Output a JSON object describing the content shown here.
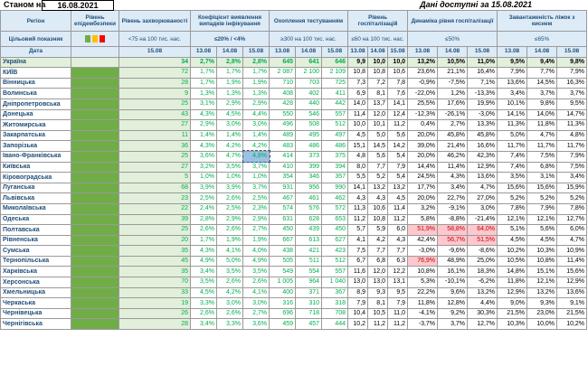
{
  "top": {
    "as_of_label": "Станом на",
    "as_of_date": "16.08.2021",
    "available": "Дані доступні за 15.08.2021"
  },
  "header": {
    "region": "Регіон",
    "epid_level": "Рівень епідембезпеки",
    "incidence": "Рівень захворюваності",
    "detection": "Коефіцієнт виявлення випадків інфікування",
    "testing": "Охоплення тестуванням",
    "hosp": "Рівень госпіталізацій",
    "dynamics": "Динаміка рівня госпіталізації",
    "oxygen": "Завантаженість ліжок з киснем"
  },
  "targets": {
    "label": "Цільовий показник",
    "incidence": "<75 на 100 тис. нас.",
    "detection": "≤20% / <4%",
    "testing": "≥300 на 100 тис. нас.",
    "hosp": "≤60 на 100 тис. нас.",
    "dynamics": "≤50%",
    "oxygen": "≤65%"
  },
  "dates": {
    "label": "Дата",
    "d15": "15.08",
    "d13": "13.08",
    "d14": "14.08"
  },
  "level_colors": [
    "#70ad47",
    "#ffc000",
    "#ff0000"
  ],
  "rows": [
    {
      "name": "Україна",
      "inc": "34",
      "det": [
        "2,7%",
        "2,8%",
        "2,8%"
      ],
      "test": [
        "645",
        "641",
        "646"
      ],
      "hosp": [
        "9,9",
        "10,0",
        "10,0"
      ],
      "dyn": [
        "13,2%",
        "10,5%",
        "11,0%"
      ],
      "oxy": [
        "9,5%",
        "9,4%",
        "9,8%"
      ]
    },
    {
      "name": "КИЇВ",
      "inc": "72",
      "det": [
        "1,7%",
        "1,7%",
        "1,7%"
      ],
      "test": [
        "2 087",
        "2 100",
        "2 109"
      ],
      "hosp": [
        "10,8",
        "10,8",
        "10,6"
      ],
      "dyn": [
        "23,6%",
        "21,1%",
        "16,4%"
      ],
      "oxy": [
        "7,9%",
        "7,7%",
        "7,9%"
      ]
    },
    {
      "name": "Вінницька",
      "inc": "28",
      "det": [
        "1,7%",
        "1,9%",
        "1,9%"
      ],
      "test": [
        "710",
        "703",
        "725"
      ],
      "hosp": [
        "7,3",
        "7,2",
        "7,8"
      ],
      "dyn": [
        "-0,9%",
        "-7,5%",
        "7,1%"
      ],
      "oxy": [
        "13,6%",
        "14,5%",
        "16,3%"
      ]
    },
    {
      "name": "Волинська",
      "inc": "9",
      "det": [
        "1,3%",
        "1,3%",
        "1,3%"
      ],
      "test": [
        "408",
        "402",
        "411"
      ],
      "hosp": [
        "6,9",
        "8,1",
        "7,6"
      ],
      "dyn": [
        "-22,0%",
        "1,2%",
        "-13,3%"
      ],
      "oxy": [
        "3,4%",
        "3,7%",
        "3,7%"
      ]
    },
    {
      "name": "Дніпропетровська",
      "inc": "25",
      "det": [
        "3,1%",
        "2,9%",
        "2,9%"
      ],
      "test": [
        "428",
        "440",
        "442"
      ],
      "hosp": [
        "14,0",
        "13,7",
        "14,1"
      ],
      "dyn": [
        "25,5%",
        "17,6%",
        "19,9%"
      ],
      "oxy": [
        "10,1%",
        "9,8%",
        "9,5%"
      ]
    },
    {
      "name": "Донецька",
      "inc": "43",
      "det": [
        "4,3%",
        "4,5%",
        "4,4%"
      ],
      "test": [
        "550",
        "546",
        "557"
      ],
      "hosp": [
        "11,4",
        "12,0",
        "12,4"
      ],
      "dyn": [
        "-12,3%",
        "-26,1%",
        "-3,0%"
      ],
      "oxy": [
        "14,1%",
        "14,0%",
        "14,7%"
      ]
    },
    {
      "name": "Житомирська",
      "inc": "27",
      "det": [
        "2,9%",
        "3,0%",
        "3,0%"
      ],
      "test": [
        "496",
        "508",
        "512"
      ],
      "hosp": [
        "10,0",
        "10,1",
        "11,2"
      ],
      "dyn": [
        "0,4%",
        "2,7%",
        "13,3%"
      ],
      "oxy": [
        "11,3%",
        "11,8%",
        "11,3%"
      ]
    },
    {
      "name": "Закарпатська",
      "inc": "11",
      "det": [
        "1,4%",
        "1,4%",
        "1,4%"
      ],
      "test": [
        "489",
        "495",
        "497"
      ],
      "hosp": [
        "4,5",
        "5,0",
        "5,6"
      ],
      "dyn": [
        "20,0%",
        "45,8%",
        "45,8%"
      ],
      "oxy": [
        "5,0%",
        "4,7%",
        "4,8%"
      ]
    },
    {
      "name": "Запорізька",
      "inc": "36",
      "det": [
        "4,3%",
        "4,2%",
        "4,2%"
      ],
      "test": [
        "483",
        "486",
        "486"
      ],
      "hosp": [
        "15,1",
        "14,5",
        "14,2"
      ],
      "dyn": [
        "39,0%",
        "21,4%",
        "16,6%"
      ],
      "oxy": [
        "11,7%",
        "11,7%",
        "11,7%"
      ]
    },
    {
      "name": "Івано-Франківська",
      "inc": "25",
      "det": [
        "3,6%",
        "4,7%",
        "4,8%"
      ],
      "test": [
        "414",
        "373",
        "375"
      ],
      "hosp": [
        "4,8",
        "5,6",
        "5,4"
      ],
      "dyn": [
        "20,0%",
        "46,2%",
        "42,3%"
      ],
      "oxy": [
        "7,4%",
        "7,5%",
        "7,9%"
      ]
    },
    {
      "name": "Київська",
      "inc": "27",
      "det": [
        "3,2%",
        "3,5%",
        "3,7%"
      ],
      "test": [
        "410",
        "399",
        "394"
      ],
      "hosp": [
        "8,0",
        "7,7",
        "7,9"
      ],
      "dyn": [
        "14,4%",
        "11,4%",
        "12,9%"
      ],
      "oxy": [
        "7,4%",
        "6,8%",
        "7,5%"
      ]
    },
    {
      "name": "Кіровоградська",
      "inc": "5",
      "det": [
        "1,0%",
        "1,0%",
        "1,0%"
      ],
      "test": [
        "354",
        "346",
        "357"
      ],
      "hosp": [
        "5,5",
        "5,2",
        "5,4"
      ],
      "dyn": [
        "24,5%",
        "4,3%",
        "13,6%"
      ],
      "oxy": [
        "3,5%",
        "3,1%",
        "3,4%"
      ]
    },
    {
      "name": "Луганська",
      "inc": "68",
      "det": [
        "3,9%",
        "3,9%",
        "3,7%"
      ],
      "test": [
        "931",
        "956",
        "990"
      ],
      "hosp": [
        "14,1",
        "13,2",
        "13,2"
      ],
      "dyn": [
        "17,7%",
        "3,4%",
        "4,7%"
      ],
      "oxy": [
        "15,6%",
        "15,6%",
        "15,9%"
      ]
    },
    {
      "name": "Львівська",
      "inc": "23",
      "det": [
        "2,5%",
        "2,6%",
        "2,5%"
      ],
      "test": [
        "467",
        "461",
        "462"
      ],
      "hosp": [
        "4,3",
        "4,3",
        "4,5"
      ],
      "dyn": [
        "20,0%",
        "22,7%",
        "27,0%"
      ],
      "oxy": [
        "5,2%",
        "5,2%",
        "5,2%"
      ]
    },
    {
      "name": "Миколаївська",
      "inc": "22",
      "det": [
        "2,4%",
        "2,5%",
        "2,3%"
      ],
      "test": [
        "574",
        "576",
        "572"
      ],
      "hosp": [
        "11,3",
        "10,6",
        "11,4"
      ],
      "dyn": [
        "3,2%",
        "-9,1%",
        "3,0%"
      ],
      "oxy": [
        "7,8%",
        "7,9%",
        "7,8%"
      ]
    },
    {
      "name": "Одеська",
      "inc": "39",
      "det": [
        "2,8%",
        "2,9%",
        "2,9%"
      ],
      "test": [
        "631",
        "628",
        "653"
      ],
      "hosp": [
        "11,2",
        "10,8",
        "11,2"
      ],
      "dyn": [
        "5,8%",
        "-8,8%",
        "-21,4%"
      ],
      "oxy": [
        "12,1%",
        "12,1%",
        "12,7%"
      ]
    },
    {
      "name": "Полтавська",
      "inc": "25",
      "det": [
        "2,6%",
        "2,6%",
        "2,7%"
      ],
      "test": [
        "450",
        "439",
        "450"
      ],
      "hosp": [
        "5,7",
        "5,9",
        "6,0"
      ],
      "dyn": [
        "51,9%",
        "58,8%",
        "64,0%"
      ],
      "oxy": [
        "5,1%",
        "5,6%",
        "6,0%"
      ],
      "pink": [
        0,
        1,
        2
      ]
    },
    {
      "name": "Рівненська",
      "inc": "20",
      "det": [
        "1,7%",
        "1,9%",
        "1,9%"
      ],
      "test": [
        "667",
        "613",
        "627"
      ],
      "hosp": [
        "4,1",
        "4,2",
        "4,3"
      ],
      "dyn": [
        "42,4%",
        "56,7%",
        "51,5%"
      ],
      "oxy": [
        "4,5%",
        "4,5%",
        "4,7%"
      ],
      "pink": [
        1,
        2
      ]
    },
    {
      "name": "Сумська",
      "inc": "35",
      "det": [
        "4,3%",
        "4,1%",
        "4,0%"
      ],
      "test": [
        "438",
        "421",
        "423"
      ],
      "hosp": [
        "7,5",
        "7,7",
        "7,7"
      ],
      "dyn": [
        "-3,0%",
        "-9,6%",
        "-8,6%"
      ],
      "oxy": [
        "10,2%",
        "10,3%",
        "10,9%"
      ]
    },
    {
      "name": "Тернопільська",
      "inc": "45",
      "det": [
        "4,9%",
        "5,0%",
        "4,9%"
      ],
      "test": [
        "505",
        "511",
        "512"
      ],
      "hosp": [
        "6,7",
        "6,8",
        "6,3"
      ],
      "dyn": [
        "76,9%",
        "48,9%",
        "25,0%"
      ],
      "oxy": [
        "10,5%",
        "10,8%",
        "11,4%"
      ],
      "pink": [
        0
      ]
    },
    {
      "name": "Харківська",
      "inc": "35",
      "det": [
        "3,4%",
        "3,5%",
        "3,5%"
      ],
      "test": [
        "549",
        "554",
        "557"
      ],
      "hosp": [
        "11,6",
        "12,0",
        "12,2"
      ],
      "dyn": [
        "10,8%",
        "16,1%",
        "18,3%"
      ],
      "oxy": [
        "14,8%",
        "15,1%",
        "15,6%"
      ]
    },
    {
      "name": "Херсонська",
      "inc": "70",
      "det": [
        "3,5%",
        "2,6%",
        "2,6%"
      ],
      "test": [
        "1 005",
        "964",
        "1 040"
      ],
      "hosp": [
        "13,0",
        "13,0",
        "13,1"
      ],
      "dyn": [
        "5,3%",
        "-10,1%",
        "-6,2%"
      ],
      "oxy": [
        "11,8%",
        "12,1%",
        "12,9%"
      ]
    },
    {
      "name": "Хмельницька",
      "inc": "33",
      "det": [
        "4,5%",
        "4,2%",
        "4,1%"
      ],
      "test": [
        "400",
        "371",
        "367"
      ],
      "hosp": [
        "8,9",
        "9,3",
        "9,5"
      ],
      "dyn": [
        "22,2%",
        "9,6%",
        "13,2%"
      ],
      "oxy": [
        "12,9%",
        "13,2%",
        "13,6%"
      ]
    },
    {
      "name": "Черкаська",
      "inc": "19",
      "det": [
        "3,3%",
        "3,0%",
        "3,0%"
      ],
      "test": [
        "316",
        "310",
        "318"
      ],
      "hosp": [
        "7,9",
        "8,1",
        "7,9"
      ],
      "dyn": [
        "11,8%",
        "12,8%",
        "4,4%"
      ],
      "oxy": [
        "9,0%",
        "9,3%",
        "9,1%"
      ]
    },
    {
      "name": "Чернівецька",
      "inc": "26",
      "det": [
        "2,6%",
        "2,6%",
        "2,7%"
      ],
      "test": [
        "696",
        "718",
        "708"
      ],
      "hosp": [
        "10,4",
        "10,5",
        "11,0"
      ],
      "dyn": [
        "-4,1%",
        "9,2%",
        "30,3%"
      ],
      "oxy": [
        "21,5%",
        "23,0%",
        "21,5%"
      ]
    },
    {
      "name": "Чернігівська",
      "inc": "28",
      "det": [
        "3,4%",
        "3,3%",
        "3,6%"
      ],
      "test": [
        "459",
        "457",
        "444"
      ],
      "hosp": [
        "10,2",
        "11,2",
        "11,2"
      ],
      "dyn": [
        "-3,7%",
        "3,7%",
        "12,7%"
      ],
      "oxy": [
        "10,3%",
        "10,0%",
        "10,2%"
      ]
    }
  ]
}
